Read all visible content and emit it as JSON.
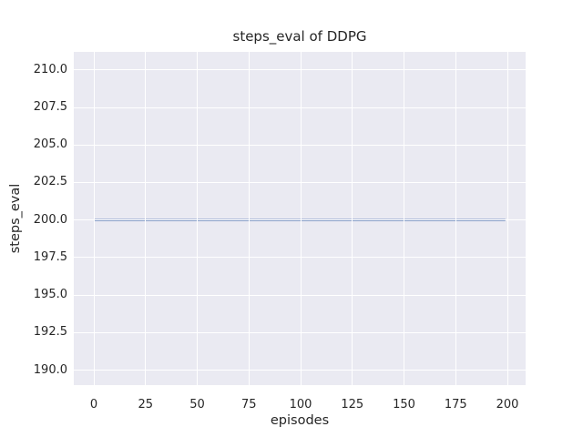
{
  "chart_data": {
    "type": "line",
    "title": "steps_eval of DDPG",
    "xlabel": "episodes",
    "ylabel": "steps_eval",
    "x_tick_values": [
      0,
      25,
      50,
      75,
      100,
      125,
      150,
      175,
      200
    ],
    "x_tick_labels": [
      "0",
      "25",
      "50",
      "75",
      "100",
      "125",
      "150",
      "175",
      "200"
    ],
    "y_tick_values": [
      190.0,
      192.5,
      195.0,
      197.5,
      200.0,
      202.5,
      205.0,
      207.5,
      210.0
    ],
    "y_tick_labels": [
      "190.0",
      "192.5",
      "195.0",
      "197.5",
      "200.0",
      "202.5",
      "205.0",
      "207.5",
      "210.0"
    ],
    "xlim": [
      -9.7,
      208.8
    ],
    "ylim": [
      189.0,
      211.2
    ],
    "grid": true,
    "legend": false,
    "series": [
      {
        "name": "steps_eval",
        "color": "#4c72b0",
        "line_width": 2,
        "points": [
          [
            0,
            200.0
          ],
          [
            199,
            200.0
          ]
        ]
      }
    ],
    "colors": {
      "figure_background": "#ffffff",
      "plot_background": "#eaeaf2",
      "gridline": "#ffffff",
      "text": "#262626",
      "line": "#4c72b0"
    }
  }
}
